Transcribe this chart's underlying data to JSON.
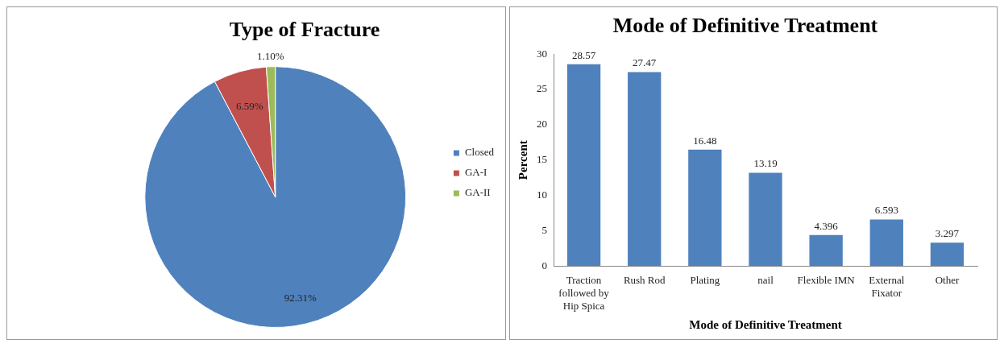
{
  "chart_data": [
    {
      "type": "pie",
      "title": "Type of Fracture",
      "categories": [
        "Closed",
        "GA-I",
        "GA-II"
      ],
      "values": [
        92.31,
        6.59,
        1.1
      ],
      "colors": [
        "#4f81bd",
        "#c0504d",
        "#9bbb59"
      ],
      "value_labels": [
        "92.31%",
        "6.59%",
        "1.10%"
      ],
      "legend": "right"
    },
    {
      "type": "bar",
      "title": "Mode of Definitive Treatment",
      "xlabel": "Mode of Definitive Treatment",
      "ylabel": "Percent",
      "categories": [
        "Traction followed by Hip Spica",
        "Rush Rod",
        "Plating",
        "nail",
        "Flexible IMN",
        "External Fixator",
        "Other"
      ],
      "values": [
        28.57,
        27.47,
        16.48,
        13.19,
        4.396,
        6.593,
        3.297
      ],
      "color": "#4f81bd",
      "ylim": [
        0,
        30
      ],
      "yticks": [
        0,
        5,
        10,
        15,
        20,
        25,
        30
      ],
      "data_labels": true,
      "grid": false,
      "legend": false
    }
  ]
}
